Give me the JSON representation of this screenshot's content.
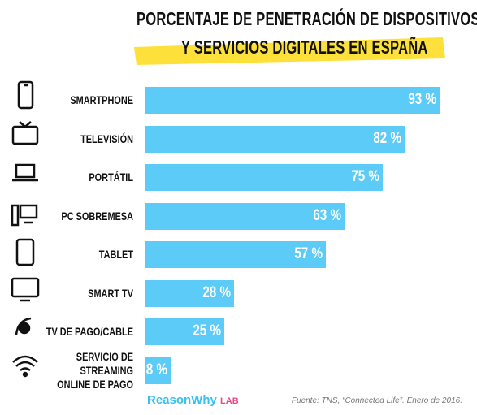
{
  "chart_data": {
    "type": "hbar",
    "title": [
      "PORCENTAJE DE PENETRACIÓN DE DISPOSITIVOS",
      "Y SERVICIOS DIGITALES EN ESPAÑA"
    ],
    "categories": [
      "SMARTPHONE",
      "TELEVISIÓN",
      "PORTÁTIL",
      "PC SOBREMESA",
      "TABLET",
      "SMART TV",
      "TV DE PAGO/CABLE",
      "SERVICIO DE STREAMING ONLINE DE PAGO"
    ],
    "values": [
      93,
      82,
      75,
      63,
      57,
      28,
      25,
      8
    ],
    "value_labels": [
      "93 %",
      "82 %",
      "75 %",
      "63 %",
      "57 %",
      "28 %",
      "25 %",
      "8 %"
    ],
    "color": "#5ccbf7",
    "xlim": [
      0,
      100
    ],
    "brand": "ReasonWhy",
    "brand_suffix": "LAB",
    "source": "Fuente: TNS, “Connected Life”. Enero de 2016."
  }
}
